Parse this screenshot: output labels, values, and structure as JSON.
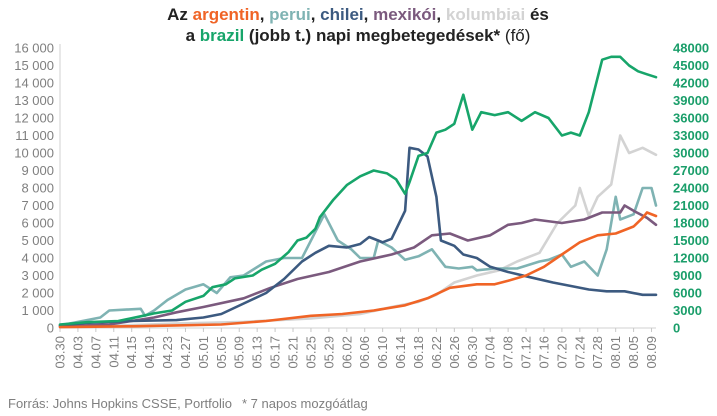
{
  "chart_data": {
    "type": "line",
    "title": {
      "line1": [
        {
          "text": "Az ",
          "series": null
        },
        {
          "text": "argentin",
          "series": "argentin"
        },
        {
          "text": ", ",
          "series": null
        },
        {
          "text": "perui",
          "series": "perui"
        },
        {
          "text": ", ",
          "series": null
        },
        {
          "text": "chilei",
          "series": "chilei"
        },
        {
          "text": ", ",
          "series": null
        },
        {
          "text": "mexikói",
          "series": "mexikoi"
        },
        {
          "text": ", ",
          "series": null
        },
        {
          "text": "kolumbiai",
          "series": "kolumbiai"
        },
        {
          "text": " és",
          "series": null
        }
      ],
      "line2": [
        {
          "text": "a ",
          "series": null
        },
        {
          "text": "brazil",
          "series": "brazil"
        },
        {
          "text": " (jobb t.) napi megbetegedések* ",
          "series": null
        },
        {
          "text": "(fő)",
          "series": null,
          "weight": "normal"
        }
      ]
    },
    "y_left": {
      "min": 0,
      "max": 16000,
      "ticks": [
        "0",
        "1 000",
        "2 000",
        "3 000",
        "4 000",
        "5 000",
        "6 000",
        "7 000",
        "8 000",
        "9 000",
        "10 000",
        "11 000",
        "12 000",
        "13 000",
        "14 000",
        "15 000",
        "16 000"
      ],
      "color": "#7f7f7f"
    },
    "y_right": {
      "min": 0,
      "max": 48000,
      "ticks": [
        "0",
        "3000",
        "6000",
        "9000",
        "12000",
        "15000",
        "18000",
        "21000",
        "24000",
        "27000",
        "30000",
        "33000",
        "36000",
        "39000",
        "42000",
        "45000",
        "48000"
      ],
      "color": "#1a9e6a"
    },
    "x": {
      "start": "03.30",
      "end": "08.10",
      "ticks": [
        "03.30",
        "04.03",
        "04.07",
        "04.11",
        "04.15",
        "04.19",
        "04.23",
        "04.27",
        "05.01",
        "05.05",
        "05.09",
        "05.13",
        "05.17",
        "05.21",
        "05.25",
        "05.29",
        "06.02",
        "06.06",
        "06.10",
        "06.14",
        "06.18",
        "06.22",
        "06.26",
        "06.30",
        "07.04",
        "07.08",
        "07.12",
        "07.16",
        "07.20",
        "07.24",
        "07.28",
        "08.01",
        "08.05",
        "08.09"
      ]
    },
    "grid": false,
    "series": [
      {
        "key": "kolumbiai",
        "axis": "left",
        "color": "#d3d3d3",
        "points": [
          [
            "03.30",
            100
          ],
          [
            "04.10",
            120
          ],
          [
            "04.25",
            250
          ],
          [
            "05.10",
            350
          ],
          [
            "05.25",
            550
          ],
          [
            "06.05",
            800
          ],
          [
            "06.12",
            1200
          ],
          [
            "06.18",
            1500
          ],
          [
            "06.22",
            1900
          ],
          [
            "06.26",
            2600
          ],
          [
            "07.01",
            3000
          ],
          [
            "07.06",
            3300
          ],
          [
            "07.10",
            3800
          ],
          [
            "07.15",
            4300
          ],
          [
            "07.19",
            6000
          ],
          [
            "07.23",
            7000
          ],
          [
            "07.24",
            8000
          ],
          [
            "07.26",
            6400
          ],
          [
            "07.28",
            7500
          ],
          [
            "07.31",
            8200
          ],
          [
            "08.02",
            11000
          ],
          [
            "08.04",
            10000
          ],
          [
            "08.07",
            10300
          ],
          [
            "08.10",
            9900
          ]
        ]
      },
      {
        "key": "perui",
        "axis": "left",
        "color": "#7fb3b3",
        "points": [
          [
            "03.30",
            150
          ],
          [
            "04.08",
            600
          ],
          [
            "04.10",
            1000
          ],
          [
            "04.17",
            1100
          ],
          [
            "04.18",
            700
          ],
          [
            "04.20",
            1000
          ],
          [
            "04.23",
            1600
          ],
          [
            "04.27",
            2200
          ],
          [
            "05.01",
            2500
          ],
          [
            "05.04",
            2000
          ],
          [
            "05.07",
            2900
          ],
          [
            "05.10",
            3000
          ],
          [
            "05.15",
            3800
          ],
          [
            "05.19",
            4000
          ],
          [
            "05.23",
            4000
          ],
          [
            "05.26",
            5500
          ],
          [
            "05.28",
            6500
          ],
          [
            "05.31",
            5000
          ],
          [
            "06.03",
            4500
          ],
          [
            "06.05",
            4000
          ],
          [
            "06.08",
            4000
          ],
          [
            "06.09",
            5000
          ],
          [
            "06.12",
            4600
          ],
          [
            "06.15",
            3900
          ],
          [
            "06.18",
            4100
          ],
          [
            "06.21",
            4500
          ],
          [
            "06.24",
            3500
          ],
          [
            "06.27",
            3400
          ],
          [
            "06.30",
            3500
          ],
          [
            "07.01",
            3300
          ],
          [
            "07.05",
            3400
          ],
          [
            "07.10",
            3400
          ],
          [
            "07.15",
            3800
          ],
          [
            "07.17",
            3900
          ],
          [
            "07.20",
            4200
          ],
          [
            "07.22",
            3500
          ],
          [
            "07.25",
            3800
          ],
          [
            "07.28",
            3000
          ],
          [
            "07.30",
            4500
          ],
          [
            "08.01",
            7500
          ],
          [
            "08.02",
            6200
          ],
          [
            "08.05",
            6500
          ],
          [
            "08.07",
            8000
          ],
          [
            "08.09",
            8000
          ],
          [
            "08.10",
            7000
          ]
        ]
      },
      {
        "key": "mexikoi",
        "axis": "left",
        "color": "#7b5a7e",
        "points": [
          [
            "03.30",
            100
          ],
          [
            "04.10",
            200
          ],
          [
            "04.20",
            600
          ],
          [
            "04.25",
            900
          ],
          [
            "05.01",
            1200
          ],
          [
            "05.10",
            1700
          ],
          [
            "05.16",
            2300
          ],
          [
            "05.22",
            2800
          ],
          [
            "05.29",
            3200
          ],
          [
            "06.05",
            3800
          ],
          [
            "06.12",
            4200
          ],
          [
            "06.17",
            4600
          ],
          [
            "06.21",
            5300
          ],
          [
            "06.25",
            5400
          ],
          [
            "06.29",
            5000
          ],
          [
            "07.04",
            5300
          ],
          [
            "07.08",
            5900
          ],
          [
            "07.11",
            6000
          ],
          [
            "07.14",
            6200
          ],
          [
            "07.20",
            6000
          ],
          [
            "07.25",
            6200
          ],
          [
            "07.29",
            6600
          ],
          [
            "08.02",
            6600
          ],
          [
            "08.03",
            7000
          ],
          [
            "08.05",
            6700
          ],
          [
            "08.08",
            6300
          ],
          [
            "08.10",
            5900
          ]
        ]
      },
      {
        "key": "chilei",
        "axis": "left",
        "color": "#3c5a80",
        "points": [
          [
            "03.30",
            150
          ],
          [
            "04.05",
            300
          ],
          [
            "04.15",
            400
          ],
          [
            "04.25",
            450
          ],
          [
            "05.01",
            600
          ],
          [
            "05.05",
            800
          ],
          [
            "05.10",
            1400
          ],
          [
            "05.15",
            2000
          ],
          [
            "05.19",
            2800
          ],
          [
            "05.23",
            3800
          ],
          [
            "05.26",
            4300
          ],
          [
            "05.29",
            4700
          ],
          [
            "06.02",
            4600
          ],
          [
            "06.05",
            4800
          ],
          [
            "06.07",
            5200
          ],
          [
            "06.10",
            4900
          ],
          [
            "06.12",
            5100
          ],
          [
            "06.15",
            6700
          ],
          [
            "06.16",
            10300
          ],
          [
            "06.18",
            10200
          ],
          [
            "06.20",
            9800
          ],
          [
            "06.22",
            7500
          ],
          [
            "06.23",
            5000
          ],
          [
            "06.26",
            4700
          ],
          [
            "06.28",
            4200
          ],
          [
            "07.01",
            4000
          ],
          [
            "07.04",
            3500
          ],
          [
            "07.08",
            3200
          ],
          [
            "07.13",
            2900
          ],
          [
            "07.18",
            2600
          ],
          [
            "07.22",
            2400
          ],
          [
            "07.26",
            2200
          ],
          [
            "07.30",
            2100
          ],
          [
            "08.03",
            2100
          ],
          [
            "08.07",
            1900
          ],
          [
            "08.10",
            1900
          ]
        ]
      },
      {
        "key": "argentin",
        "axis": "left",
        "color": "#f06426",
        "points": [
          [
            "03.30",
            50
          ],
          [
            "04.15",
            100
          ],
          [
            "04.25",
            150
          ],
          [
            "05.05",
            200
          ],
          [
            "05.15",
            400
          ],
          [
            "05.25",
            700
          ],
          [
            "06.01",
            800
          ],
          [
            "06.08",
            1000
          ],
          [
            "06.15",
            1300
          ],
          [
            "06.20",
            1700
          ],
          [
            "06.25",
            2300
          ],
          [
            "07.01",
            2500
          ],
          [
            "07.05",
            2500
          ],
          [
            "07.08",
            2700
          ],
          [
            "07.12",
            3000
          ],
          [
            "07.16",
            3500
          ],
          [
            "07.20",
            4200
          ],
          [
            "07.24",
            4900
          ],
          [
            "07.28",
            5300
          ],
          [
            "08.01",
            5400
          ],
          [
            "08.05",
            5800
          ],
          [
            "08.07",
            6300
          ],
          [
            "08.08",
            6600
          ],
          [
            "08.10",
            6400
          ]
        ]
      },
      {
        "key": "brazil",
        "axis": "right",
        "color": "#17a56a",
        "points": [
          [
            "03.30",
            600
          ],
          [
            "04.05",
            1000
          ],
          [
            "04.12",
            1200
          ],
          [
            "04.17",
            2000
          ],
          [
            "04.20",
            2500
          ],
          [
            "04.24",
            3000
          ],
          [
            "04.27",
            4500
          ],
          [
            "05.01",
            5500
          ],
          [
            "05.03",
            7000
          ],
          [
            "05.06",
            7500
          ],
          [
            "05.08",
            8500
          ],
          [
            "05.12",
            9000
          ],
          [
            "05.14",
            10000
          ],
          [
            "05.17",
            11000
          ],
          [
            "05.20",
            13000
          ],
          [
            "05.22",
            15000
          ],
          [
            "05.24",
            15500
          ],
          [
            "05.26",
            17000
          ],
          [
            "05.27",
            19000
          ],
          [
            "05.30",
            22000
          ],
          [
            "06.02",
            24500
          ],
          [
            "06.05",
            26000
          ],
          [
            "06.08",
            27000
          ],
          [
            "06.11",
            26500
          ],
          [
            "06.13",
            25500
          ],
          [
            "06.15",
            23000
          ],
          [
            "06.16",
            25000
          ],
          [
            "06.18",
            29500
          ],
          [
            "06.20",
            30000
          ],
          [
            "06.22",
            33500
          ],
          [
            "06.24",
            34000
          ],
          [
            "06.26",
            35000
          ],
          [
            "06.28",
            40000
          ],
          [
            "06.30",
            34000
          ],
          [
            "07.02",
            37000
          ],
          [
            "07.05",
            36500
          ],
          [
            "07.08",
            37000
          ],
          [
            "07.11",
            35500
          ],
          [
            "07.14",
            37000
          ],
          [
            "07.17",
            36000
          ],
          [
            "07.20",
            33000
          ],
          [
            "07.22",
            33500
          ],
          [
            "07.24",
            33000
          ],
          [
            "07.26",
            37000
          ],
          [
            "07.29",
            46000
          ],
          [
            "07.31",
            46500
          ],
          [
            "08.02",
            46500
          ],
          [
            "08.04",
            45000
          ],
          [
            "08.06",
            44000
          ],
          [
            "08.08",
            43500
          ],
          [
            "08.10",
            43000
          ]
        ]
      }
    ],
    "footnotes": [
      "Forrás: Johns Hopkins CSSE, Portfolio",
      "* 7 napos mozgóátlag"
    ]
  }
}
